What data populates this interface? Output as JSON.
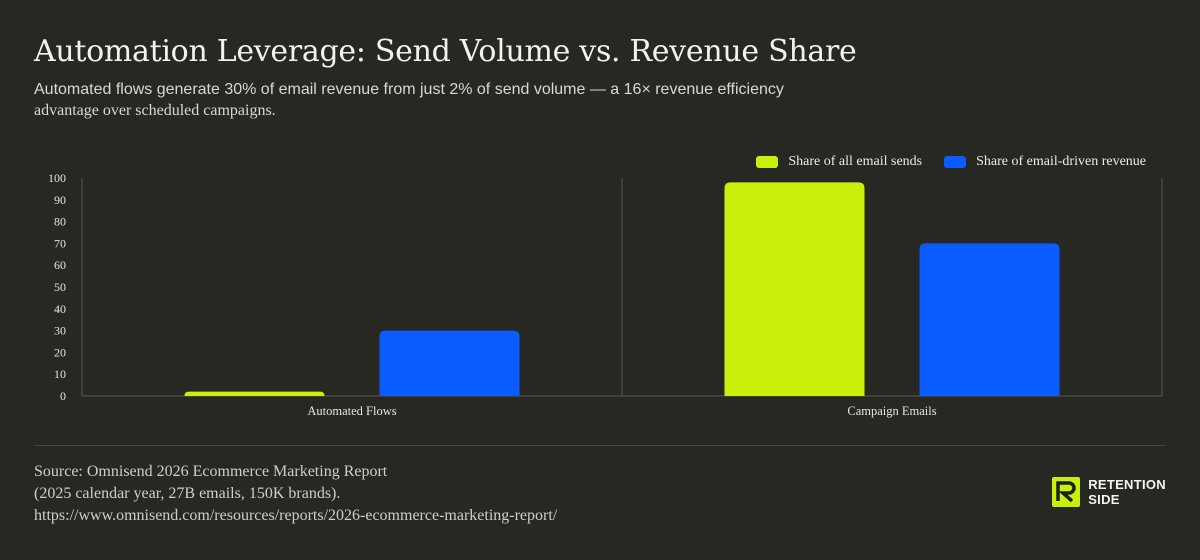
{
  "header": {
    "title": "Automation Leverage: Send Volume vs. Revenue Share",
    "subtitle_line1": "Automated flows generate 30% of email revenue from just 2% of send volume — a 16× revenue efficiency",
    "subtitle_line2": "advantage over scheduled campaigns."
  },
  "chart_data": {
    "type": "bar",
    "title": "Automation Leverage: Send Volume vs. Revenue Share",
    "categories": [
      "Automated Flows",
      "Campaign Emails"
    ],
    "series": [
      {
        "name": "Share of all email sends",
        "values": [
          2,
          98
        ],
        "color": "#c9f00a"
      },
      {
        "name": "Share of email-driven revenue",
        "values": [
          30,
          70
        ],
        "color": "#0a5cff"
      }
    ],
    "ylim": [
      0,
      100
    ],
    "yticks": [
      "0",
      "10",
      "20",
      "30",
      "40",
      "50",
      "60",
      "70",
      "80",
      "90",
      "100"
    ],
    "xlabel": "",
    "ylabel": "",
    "grid": false,
    "legend_position": "top-right"
  },
  "source": {
    "line1": "Source: Omnisend 2026 Ecommerce Marketing Report",
    "line2": "(2025 calendar year, 27B emails, 150K brands).",
    "line3": "https://www.omnisend.com/resources/reports/2026-ecommerce-marketing-report/"
  },
  "brand": {
    "line1": "RETENTION",
    "line2": "SIDE",
    "icon": "retention-side-logo-icon",
    "accent_color": "#c9f00a"
  },
  "colors": {
    "background": "#272821",
    "axis": "#5a5b53"
  }
}
